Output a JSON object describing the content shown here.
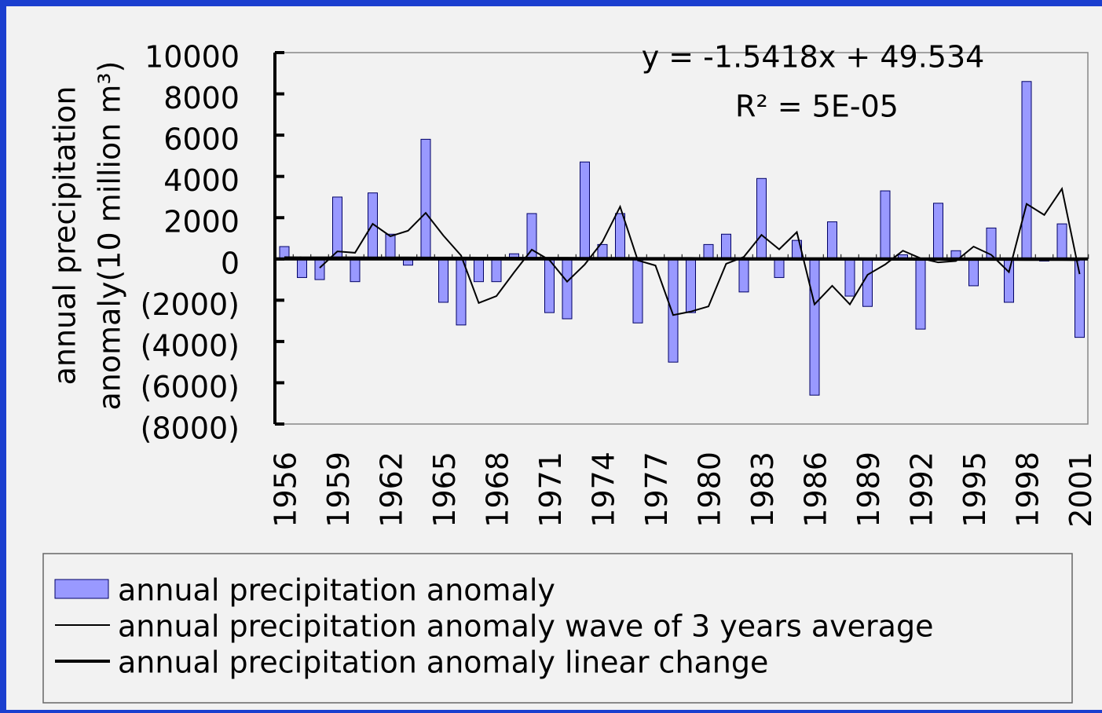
{
  "chart_data": {
    "type": "bar",
    "y_axis_label": [
      "annual precipitation",
      "anomaly(10 million m³)"
    ],
    "annotations": [
      "y = -1.5418x + 49.534",
      "R² = 5E-05"
    ],
    "categories": [
      "1956",
      null,
      null,
      "1959",
      null,
      null,
      "1962",
      null,
      null,
      "1965",
      null,
      null,
      "1968",
      null,
      null,
      "1971",
      null,
      null,
      "1974",
      null,
      null,
      "1977",
      null,
      null,
      "1980",
      null,
      null,
      "1983",
      null,
      null,
      "1986",
      null,
      null,
      "1989",
      null,
      null,
      "1992",
      null,
      null,
      "1995",
      null,
      null,
      "1998",
      null,
      null,
      "2001"
    ],
    "series": [
      {
        "name": "annual precipitation anomaly",
        "type": "bar",
        "color": "#9999ff",
        "values": [
          600,
          -900,
          -1000,
          3000,
          -1100,
          3200,
          1200,
          -300,
          5800,
          -2100,
          -3200,
          -1100,
          -1100,
          250,
          2200,
          -2600,
          -2900,
          4700,
          700,
          2200,
          -3100,
          -50,
          -5000,
          -2600,
          700,
          1200,
          -1600,
          3900,
          -900,
          900,
          -6600,
          1800,
          -1800,
          -2300,
          3300,
          200,
          -3400,
          2700,
          400,
          -1300,
          1500,
          -2100,
          8600,
          -100,
          1700,
          -3800
        ]
      },
      {
        "name": "annual precipitation anomaly wave of 3 years average",
        "type": "line",
        "color": "#000000",
        "width": 2,
        "values": [
          null,
          null,
          -433,
          367,
          300,
          1700,
          1100,
          1367,
          2233,
          1133,
          167,
          -2133,
          -1800,
          -650,
          450,
          -50,
          -1100,
          -267,
          833,
          2533,
          -67,
          -317,
          -2717,
          -2550,
          -2300,
          -233,
          100,
          1167,
          467,
          1300,
          -2200,
          -1300,
          -2200,
          -767,
          -267,
          400,
          33,
          -167,
          -100,
          600,
          200,
          -633,
          2667,
          2133,
          3400,
          -733
        ]
      },
      {
        "name": "annual precipitation anomaly linear change",
        "type": "line",
        "color": "#000000",
        "width": 4,
        "values": [
          48,
          46,
          45,
          43,
          42,
          40,
          39,
          37,
          36,
          34,
          33,
          31,
          30,
          28,
          26,
          25,
          23,
          22,
          20,
          19,
          17,
          16,
          14,
          13,
          11,
          9,
          8,
          6,
          5,
          3,
          2,
          0,
          -1,
          -3,
          -4,
          -6,
          -8,
          -9,
          -11,
          -12,
          -14,
          -15,
          -17,
          -18,
          -20,
          -21
        ]
      }
    ],
    "ylim": [
      -8000,
      10000
    ],
    "yticks": [
      {
        "value": -8000,
        "label": "(8000)"
      },
      {
        "value": -6000,
        "label": "(6000)"
      },
      {
        "value": -4000,
        "label": "(4000)"
      },
      {
        "value": -2000,
        "label": "(2000)"
      },
      0,
      2000,
      4000,
      6000,
      8000,
      10000
    ],
    "negative_tick_color": "#ff0000",
    "grid": false
  }
}
